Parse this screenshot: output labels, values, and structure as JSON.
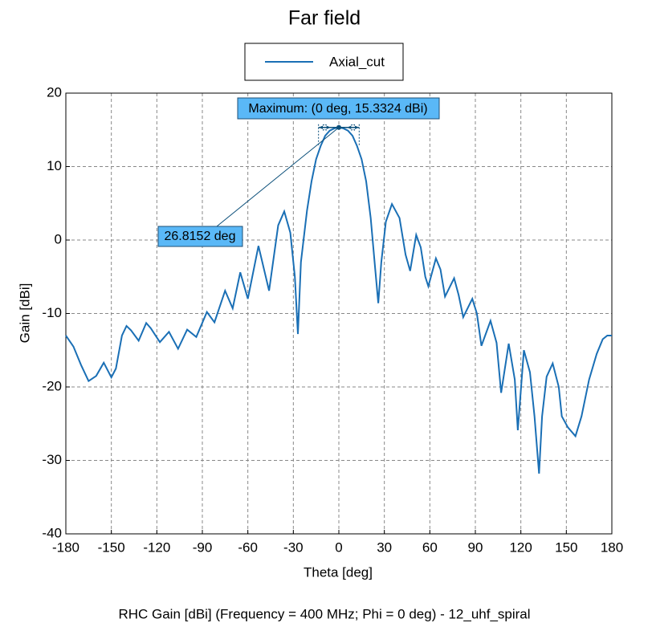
{
  "chart_data": {
    "type": "line",
    "title": "Far field",
    "xlabel": "Theta [deg]",
    "ylabel": "Gain [dBi]",
    "footer": "RHC Gain [dBi] (Frequency = 400 MHz; Phi = 0 deg) - 12_uhf_spiral",
    "x": [
      -180,
      -175,
      -170,
      -165,
      -160,
      -155,
      -150,
      -147,
      -143,
      -140,
      -137,
      -132,
      -127,
      -124,
      -118,
      -112,
      -106,
      -100,
      -94,
      -87,
      -82,
      -75,
      -70,
      -65,
      -60,
      -53,
      -46,
      -40,
      -36,
      -32,
      -29,
      -27,
      -25,
      -21,
      -18,
      -15,
      -12,
      -9,
      -6,
      -3,
      0,
      3,
      6,
      9,
      12,
      15,
      18,
      21,
      24,
      26,
      28,
      31,
      35,
      40,
      44,
      47,
      51,
      54,
      57,
      59,
      64,
      67,
      70,
      76,
      79,
      82,
      88,
      91,
      94,
      100,
      104,
      107,
      112,
      116,
      118,
      122,
      126,
      129,
      132,
      134,
      137,
      141,
      145,
      147,
      151,
      156,
      160,
      165,
      170,
      174,
      177,
      180
    ],
    "series": [
      {
        "name": "Axial_cut",
        "color": "#1a6fb5",
        "values": [
          -13,
          -14.5,
          -17,
          -19.2,
          -18.5,
          -16.7,
          -18.7,
          -17.5,
          -13,
          -11.7,
          -12.3,
          -13.7,
          -11.3,
          -12,
          -13.9,
          -12.5,
          -14.8,
          -12.2,
          -13.2,
          -9.8,
          -11.2,
          -6.9,
          -9.3,
          -4.4,
          -8,
          -0.8,
          -6.9,
          2,
          3.9,
          1,
          -5,
          -12.8,
          -3,
          4,
          8,
          11,
          12.8,
          14.2,
          14.9,
          15.2,
          15.3324,
          15.2,
          14.9,
          14.2,
          12.8,
          11,
          8,
          3,
          -4,
          -8.6,
          -3,
          2.5,
          4.9,
          3,
          -2,
          -4.2,
          0.7,
          -1,
          -5,
          -6.3,
          -2.5,
          -4,
          -7.7,
          -5.2,
          -7.5,
          -10.5,
          -8,
          -10,
          -14.4,
          -11,
          -14,
          -20.8,
          -14.1,
          -19,
          -25.9,
          -15,
          -18,
          -24,
          -31.8,
          -24,
          -18.6,
          -16.8,
          -20,
          -24,
          -25.5,
          -26.7,
          -24,
          -19,
          -15.5,
          -13.5,
          -13,
          -13
        ]
      }
    ],
    "xlim": [
      -180,
      180
    ],
    "ylim": [
      -40,
      20
    ],
    "xticks": [
      -180,
      -150,
      -120,
      -90,
      -60,
      -30,
      0,
      30,
      60,
      90,
      120,
      150,
      180
    ],
    "yticks": [
      -40,
      -30,
      -20,
      -10,
      0,
      10,
      20
    ],
    "grid": true,
    "legend": "top",
    "annotations": {
      "maximum": {
        "x": 0,
        "y": 15.3324,
        "label": "Maximum: (0 deg, 15.3324 dBi)"
      },
      "beamwidth": {
        "value": 26.8152,
        "label": "26.8152 deg"
      }
    }
  }
}
